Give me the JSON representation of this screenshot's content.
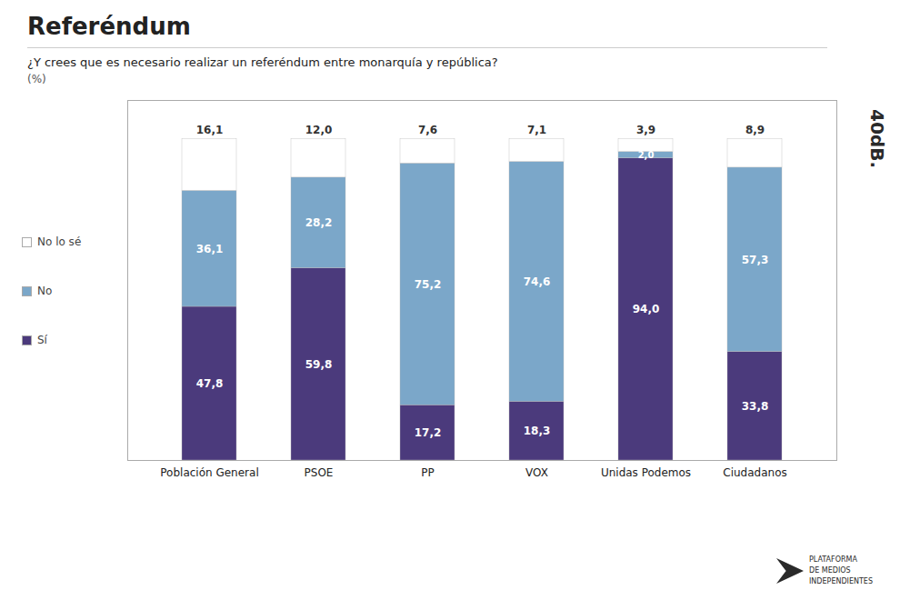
{
  "chart_data": {
    "type": "bar",
    "stacked": true,
    "title": "Referéndum",
    "subtitle": "¿Y crees que es necesario realizar un referéndum entre monarquía y república?",
    "annotations": [
      "(%)",
      "40dB.",
      "PLATAFORMA\nDE MEDIOS\nINDEPENDIENTES"
    ],
    "categories": [
      "Población General",
      "PSOE",
      "PP",
      "VOX",
      "Unidas Podemos",
      "Ciudadanos"
    ],
    "series": [
      {
        "name": "Sí",
        "color": "#4b3a7c",
        "values": [
          47.8,
          59.8,
          17.2,
          18.3,
          94.0,
          33.8
        ],
        "value_labels": [
          "47,8",
          "59,8",
          "17,2",
          "18,3",
          "94,0",
          "33,8"
        ]
      },
      {
        "name": "No",
        "color": "#7ba7c9",
        "values": [
          36.1,
          28.2,
          75.2,
          74.6,
          2.0,
          57.3
        ],
        "value_labels": [
          "36,1",
          "28,2",
          "75,2",
          "74,6",
          "2,0",
          "57,3"
        ]
      },
      {
        "name": "No lo sé",
        "color": "#ffffff",
        "values": [
          16.1,
          12.0,
          7.6,
          7.1,
          3.9,
          8.9
        ],
        "value_labels": [
          "16,1",
          "12,0",
          "7,6",
          "7,1",
          "3,9",
          "8,9"
        ]
      }
    ],
    "ylim": [
      0,
      112
    ],
    "data_labels": true,
    "tick_labels": "x",
    "legend": "left",
    "grid": false
  }
}
